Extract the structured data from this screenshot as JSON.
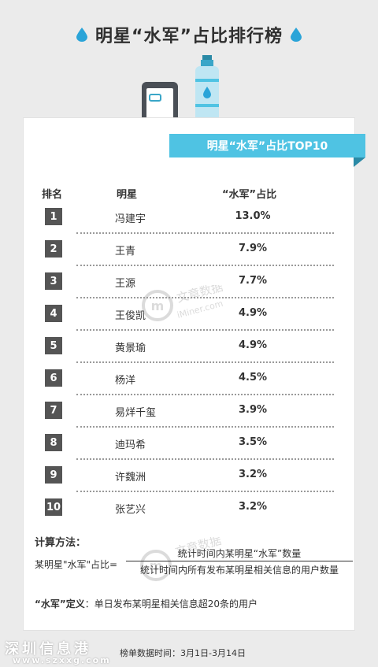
{
  "header": {
    "title": "明星“水军”占比排行榜"
  },
  "banner": {
    "text": "明星“水军”占比TOP10"
  },
  "columns": {
    "rank": "排名",
    "star": "明星",
    "share": "“水军”占比"
  },
  "rows": [
    {
      "rank": "1",
      "name": "冯建宇",
      "pct": "13.0%"
    },
    {
      "rank": "2",
      "name": "王青",
      "pct": "7.9%"
    },
    {
      "rank": "3",
      "name": "王源",
      "pct": "7.7%"
    },
    {
      "rank": "4",
      "name": "王俊凯",
      "pct": "4.9%"
    },
    {
      "rank": "5",
      "name": "黄景瑜",
      "pct": "4.9%"
    },
    {
      "rank": "6",
      "name": "杨洋",
      "pct": "4.5%"
    },
    {
      "rank": "7",
      "name": "易烊千玺",
      "pct": "3.9%"
    },
    {
      "rank": "8",
      "name": "迪玛希",
      "pct": "3.5%"
    },
    {
      "rank": "9",
      "name": "许魏洲",
      "pct": "3.2%"
    },
    {
      "rank": "10",
      "name": "张艺兴",
      "pct": "3.2%"
    }
  ],
  "method": {
    "title": "计算方法：",
    "left": "某明星\"水军\"占比=",
    "numerator": "统计时间内某明星“水军”数量",
    "denominator": "统计时间内所有发布某明星相关信息的用户数量"
  },
  "definition": {
    "term": "“水军”定义",
    "text": "：单日发布某明星相关信息超20条的用户"
  },
  "footer": {
    "data_time": "榜单数据时间：3月1日-3月14日",
    "site": "深圳信息港",
    "url": "www.szxxg.com"
  },
  "watermark": {
    "cn": "文章数据",
    "en": "iMiner.com"
  },
  "colors": {
    "accent": "#4fc3e3",
    "drop": "#2aa4d8",
    "rank_box": "#555555"
  }
}
